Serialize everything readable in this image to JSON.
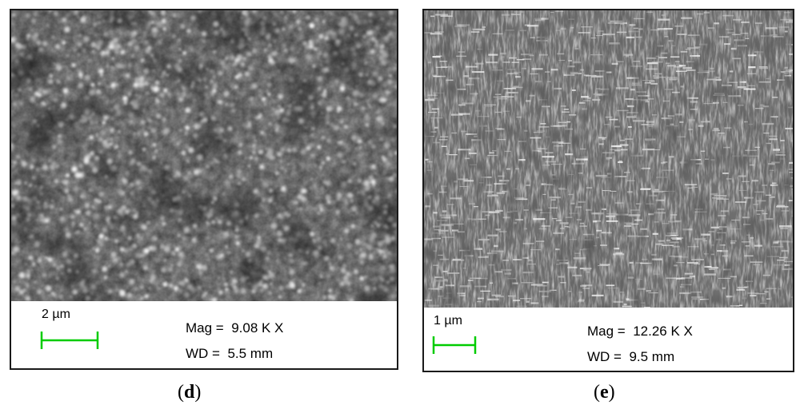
{
  "panels": [
    {
      "id": "d",
      "caption_letter": "d",
      "scale_label": "2 µm",
      "mag_label": "Mag =",
      "mag_value": "9.08 K X",
      "wd_label": "WD =",
      "wd_value": "5.5 mm",
      "scale_color": "#00cc00"
    },
    {
      "id": "e",
      "caption_letter": "e",
      "scale_label": "1 µm",
      "mag_label": "Mag =",
      "mag_value": "12.26 K X",
      "wd_label": "WD =",
      "wd_value": "9.5 mm",
      "scale_color": "#00cc00"
    }
  ]
}
